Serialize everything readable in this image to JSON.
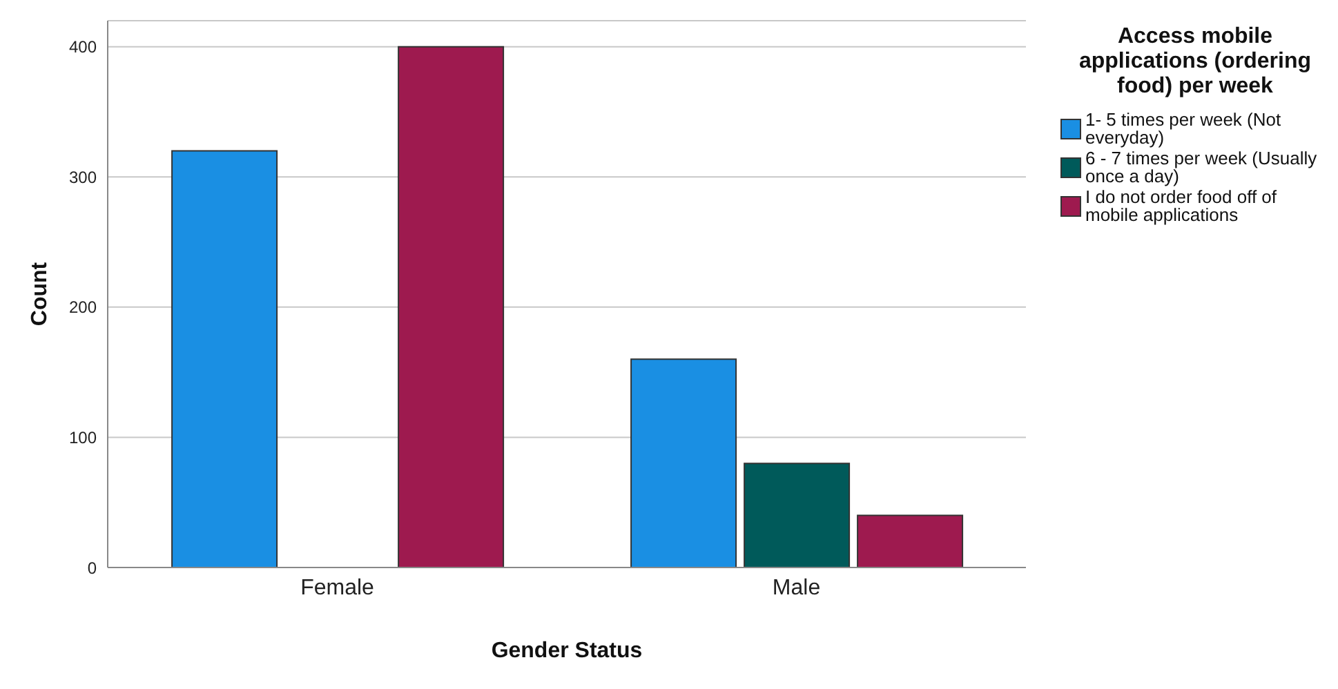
{
  "chart_data": {
    "type": "bar",
    "xlabel": "Gender Status",
    "ylabel": "Count",
    "legend_title": "Access mobile applications (ordering food) per week",
    "categories": [
      "Female",
      "Male"
    ],
    "series": [
      {
        "name": "1- 5 times per week (Not everyday)",
        "color": "#1a8fe3",
        "values": [
          320,
          160
        ]
      },
      {
        "name": "6 - 7 times per week (Usually once a day)",
        "color": "#005a5a",
        "values": [
          0,
          80
        ]
      },
      {
        "name": "I do not order food off of mobile applications",
        "color": "#9e1a4f",
        "values": [
          400,
          40
        ]
      }
    ],
    "ylim": [
      0,
      420
    ],
    "yticks": [
      0,
      100,
      200,
      300,
      400
    ],
    "grid": "y",
    "legend": "top right"
  }
}
